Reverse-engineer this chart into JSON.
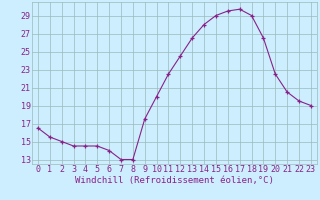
{
  "x": [
    0,
    1,
    2,
    3,
    4,
    5,
    6,
    7,
    8,
    9,
    10,
    11,
    12,
    13,
    14,
    15,
    16,
    17,
    18,
    19,
    20,
    21,
    22,
    23
  ],
  "y": [
    16.5,
    15.5,
    15.0,
    14.5,
    14.5,
    14.5,
    14.0,
    13.0,
    13.0,
    17.5,
    20.0,
    22.5,
    24.5,
    26.5,
    28.0,
    29.0,
    29.5,
    29.7,
    29.0,
    26.5,
    22.5,
    20.5,
    19.5,
    19.0
  ],
  "xlabel": "Windchill (Refroidissement éolien,°C)",
  "yticks": [
    13,
    15,
    17,
    19,
    21,
    23,
    25,
    27,
    29
  ],
  "xticks": [
    0,
    1,
    2,
    3,
    4,
    5,
    6,
    7,
    8,
    9,
    10,
    11,
    12,
    13,
    14,
    15,
    16,
    17,
    18,
    19,
    20,
    21,
    22,
    23
  ],
  "ymin": 12.5,
  "ymax": 30.5,
  "line_color": "#882288",
  "bg_color": "#cceeff",
  "grid_color": "#99bbbb",
  "font_color": "#882288",
  "tick_font_size": 6.0,
  "label_font_size": 6.5
}
